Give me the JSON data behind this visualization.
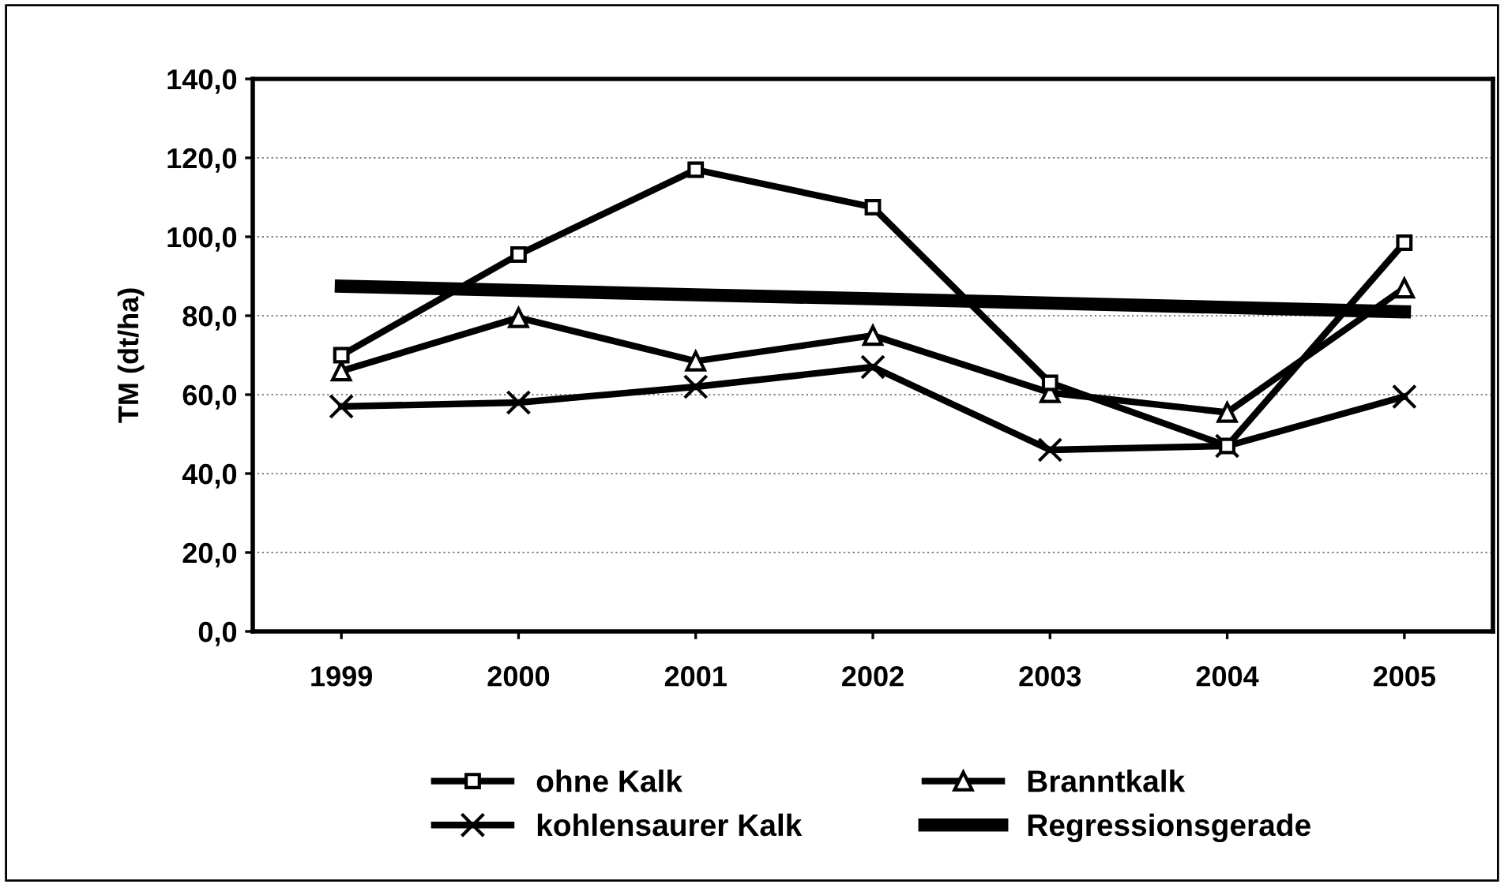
{
  "chart_data": {
    "type": "line",
    "ylabel": "TM (dt/ha)",
    "categories": [
      "1999",
      "2000",
      "2001",
      "2002",
      "2003",
      "2004",
      "2005"
    ],
    "series": [
      {
        "name": "ohne Kalk",
        "color": "#000000",
        "marker": "square",
        "values": [
          70,
          95.5,
          117,
          107.5,
          63,
          47,
          98.5
        ]
      },
      {
        "name": "Branntkalk",
        "color": "#000000",
        "marker": "triangle",
        "values": [
          66,
          79.5,
          68.5,
          75,
          60.5,
          55.5,
          87
        ]
      },
      {
        "name": "kohlensaurer Kalk",
        "color": "#000000",
        "marker": "cross",
        "values": [
          57,
          58,
          62,
          67,
          46,
          47,
          59.5
        ]
      },
      {
        "name": "Regressionsgerade",
        "color": "#000000",
        "marker": "none",
        "values": [
          87.5,
          86.4,
          85.3,
          84.3,
          83.2,
          82.1,
          81
        ]
      }
    ],
    "ylim": [
      0,
      140
    ],
    "yticks": [
      {
        "value": 0,
        "label": "0,0"
      },
      {
        "value": 20,
        "label": "20,0"
      },
      {
        "value": 40,
        "label": "40,0"
      },
      {
        "value": 60,
        "label": "60,0"
      },
      {
        "value": 80,
        "label": "80,0"
      },
      {
        "value": 100,
        "label": "100,0"
      },
      {
        "value": 120,
        "label": "120,0"
      },
      {
        "value": 140,
        "label": "140,0"
      }
    ],
    "grid": "y",
    "legend": "bottom"
  }
}
